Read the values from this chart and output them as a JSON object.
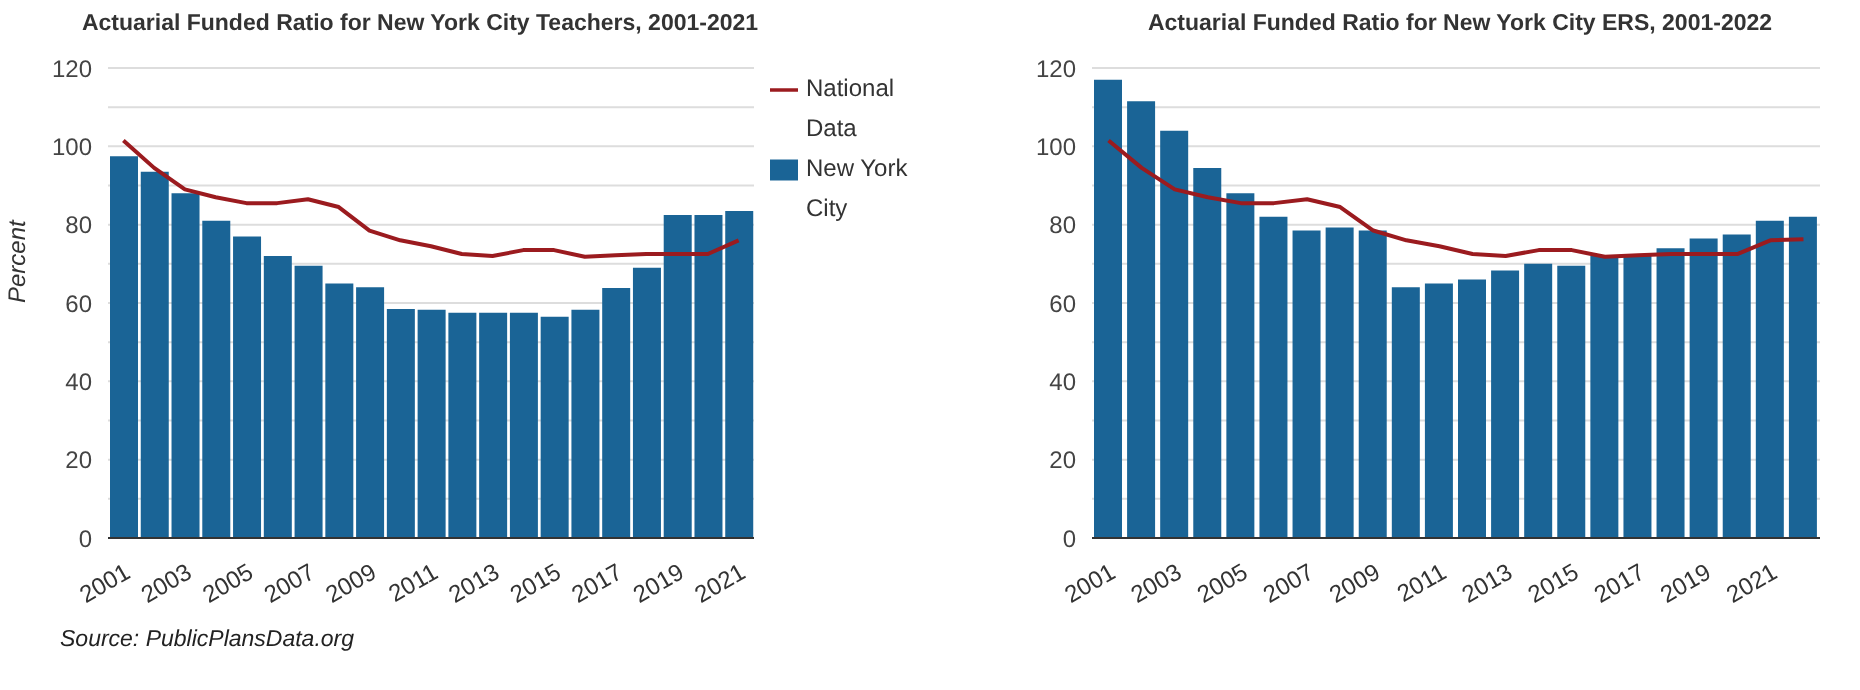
{
  "chart_data": [
    {
      "type": "bar",
      "title": "Actuarial Funded Ratio for New York City Teachers, 2001-2021",
      "ylabel": "Percent",
      "categories": [
        "2001",
        null,
        "2003",
        null,
        "2005",
        null,
        "2007",
        null,
        "2009",
        null,
        "2011",
        null,
        "2013",
        null,
        "2015",
        null,
        "2017",
        null,
        "2019",
        null,
        "2021"
      ],
      "series": [
        {
          "name": "National Data",
          "type": "line",
          "color": "#9b1b1f",
          "values": [
            101.5,
            94.5,
            89,
            87,
            85.5,
            85.5,
            86.5,
            84.5,
            78.5,
            76,
            74.5,
            72.5,
            72,
            73.5,
            73.5,
            71.8,
            72.2,
            72.5,
            72.5,
            72.5,
            76
          ]
        },
        {
          "name": "New York City",
          "color": "#1a6496",
          "values": [
            97.5,
            93.5,
            88,
            81,
            77,
            72,
            69.5,
            65,
            64,
            58.5,
            58.3,
            57.5,
            57.5,
            57.5,
            56.5,
            58.3,
            63.8,
            69,
            82.5,
            82.5,
            83.5
          ]
        }
      ],
      "ylim": [
        0,
        120
      ],
      "yticks": [
        0,
        {
          "value": 10,
          "label": null
        },
        20,
        {
          "value": 30,
          "label": null
        },
        40,
        {
          "value": 50,
          "label": null
        },
        60,
        {
          "value": 70,
          "label": null
        },
        80,
        {
          "value": 90,
          "label": null
        },
        100,
        {
          "value": 110,
          "label": null
        },
        120
      ],
      "grid": "y",
      "legend": "top right",
      "marker": "none",
      "annotations": [
        "Source: PublicPlansData.org"
      ]
    },
    {
      "type": "bar",
      "title": "Actuarial Funded Ratio for New York City ERS, 2001-2022",
      "categories": [
        "2001",
        null,
        "2003",
        null,
        "2005",
        null,
        "2007",
        null,
        "2009",
        null,
        "2011",
        null,
        "2013",
        null,
        "2015",
        null,
        "2017",
        null,
        "2019",
        null,
        "2021",
        null
      ],
      "series": [
        {
          "type": "line",
          "color": "#9b1b1f",
          "values": [
            101.5,
            94.5,
            89,
            87,
            85.5,
            85.5,
            86.5,
            84.5,
            78.5,
            76,
            74.5,
            72.5,
            72,
            73.5,
            73.5,
            71.8,
            72.2,
            72.5,
            72.5,
            72.5,
            76,
            76.3
          ]
        },
        {
          "color": "#1a6496",
          "values": [
            117,
            111.5,
            104,
            94.5,
            88,
            82,
            78.5,
            79.3,
            78.5,
            64,
            65,
            66,
            68.3,
            70,
            69.5,
            72,
            72,
            74,
            76.5,
            77.5,
            81,
            82
          ]
        }
      ],
      "ylim": [
        0,
        120
      ],
      "yticks": [
        0,
        {
          "value": 10,
          "label": null
        },
        20,
        {
          "value": 30,
          "label": null
        },
        40,
        {
          "value": 50,
          "label": null
        },
        60,
        {
          "value": 70,
          "label": null
        },
        80,
        {
          "value": 90,
          "label": null
        },
        100,
        {
          "value": 110,
          "label": null
        },
        120
      ],
      "grid": "y",
      "legend": false,
      "marker": "none"
    }
  ]
}
